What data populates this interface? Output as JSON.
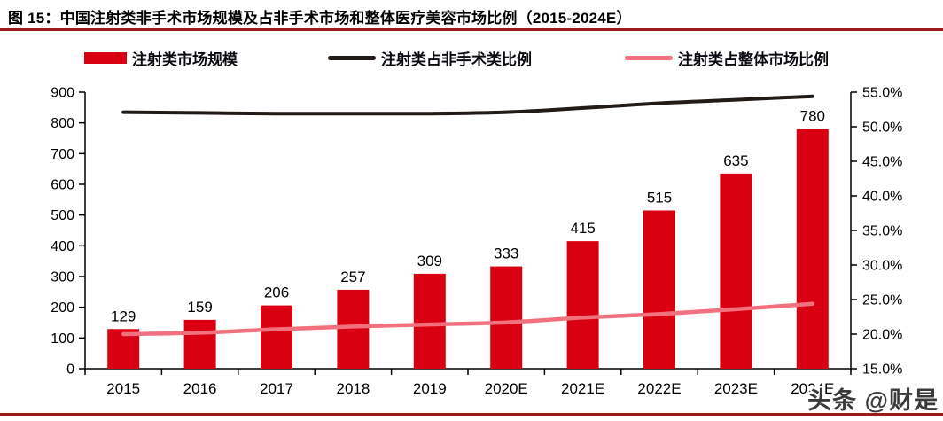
{
  "header": {
    "title": "图 15：中国注射类非手术市场规模及占非手术市场和整体医疗美容市场比例（2015-2024E）"
  },
  "colors": {
    "bar": "#D80011",
    "line_black": "#211A16",
    "line_pink": "#F2717E",
    "rule": "#9A1C1F",
    "axis": "#000000",
    "watermark_text": "#3A3A3A"
  },
  "legend": [
    {
      "label": "注射类市场规模",
      "type": "bar",
      "color": "#D80011"
    },
    {
      "label": "注射类占非手术类比例",
      "type": "line",
      "color": "#211A16"
    },
    {
      "label": "注射类占整体市场比例",
      "type": "line",
      "color": "#F2717E"
    }
  ],
  "watermark": "头条 @财是",
  "chart_data": {
    "type": "bar",
    "title": "中国注射类非手术市场规模及占非手术市场和整体医疗美容市场比例（2015-2024E）",
    "categories": [
      "2015",
      "2016",
      "2017",
      "2018",
      "2019",
      "2020E",
      "2021E",
      "2022E",
      "2023E",
      "2024E"
    ],
    "series": [
      {
        "name": "注射类市场规模",
        "type": "bar",
        "axis": "left",
        "values": [
          129,
          159,
          206,
          257,
          309,
          333,
          415,
          515,
          635,
          780
        ]
      },
      {
        "name": "注射类占非手术类比例",
        "type": "line",
        "axis": "right",
        "values_pct": [
          52.1,
          52.0,
          51.9,
          51.9,
          51.9,
          52.1,
          52.7,
          53.4,
          53.9,
          54.4
        ]
      },
      {
        "name": "注射类占整体市场比例",
        "type": "line",
        "axis": "right",
        "values_pct": [
          20.0,
          20.2,
          20.7,
          21.1,
          21.4,
          21.7,
          22.4,
          22.9,
          23.6,
          24.4
        ]
      }
    ],
    "left_axis": {
      "min": 0,
      "max": 900,
      "step": 100
    },
    "right_axis": {
      "min": 15,
      "max": 55,
      "step": 5,
      "format": "percent1"
    },
    "grid": false,
    "legend_position": "top",
    "bar_labels_shown": true
  }
}
